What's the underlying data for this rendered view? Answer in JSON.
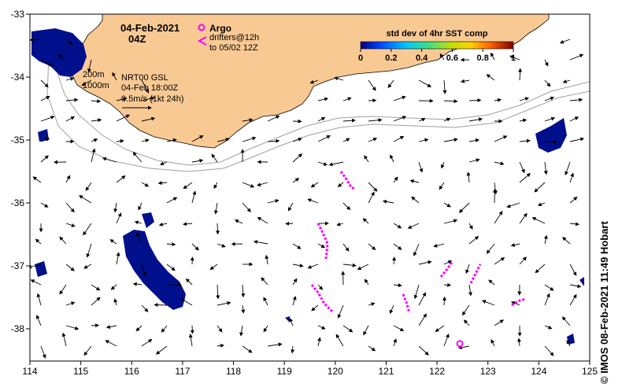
{
  "map": {
    "date": "04-Feb-2021",
    "time": "04Z",
    "legend_argo": "Argo",
    "legend_drifters_line1": "drifters@12h",
    "legend_drifters_line2": "to 05/02 12Z",
    "contour_200": "200m",
    "contour_1000": "1000m",
    "model_line1": "NRT00 GSL",
    "model_line2": "04-Feb 18:00Z",
    "scale_label": "0.5m/s (1kt 24h)",
    "credit": "© IMOS 08-Feb-2021 11:49 Hobart",
    "colors": {
      "land": "#f9c994",
      "argo": "#ff00ff",
      "drifter": "#ff00ff",
      "sst_pixel": "#00108c",
      "contour": "#a0a0a0"
    }
  },
  "colorbar": {
    "title": "std dev of 4hr SST comp",
    "ticks": [
      "0",
      "0.2",
      "0.4",
      "0.6",
      "0.8",
      "1"
    ]
  },
  "axes": {
    "x_ticks": [
      "114",
      "115",
      "116",
      "117",
      "118",
      "119",
      "120",
      "121",
      "122",
      "123",
      "124",
      "125"
    ],
    "y_ticks": [
      "-33",
      "-34",
      "-35",
      "-36",
      "-37",
      "-38"
    ],
    "x_range": [
      114,
      125
    ],
    "y_range": [
      -38.5,
      -33
    ]
  }
}
